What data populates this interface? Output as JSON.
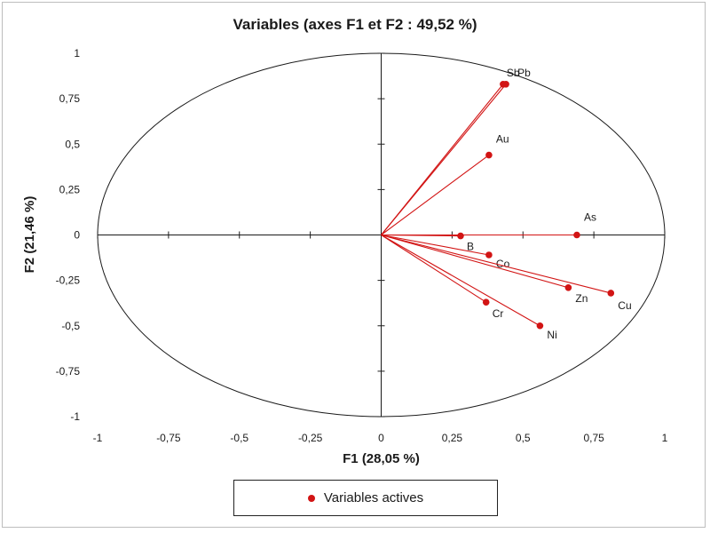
{
  "chart_data": {
    "type": "scatter",
    "title": "Variables (axes F1 et F2 : 49,52 %)",
    "xlabel": "F1 (28,05 %)",
    "ylabel": "F2 (21,46 %)",
    "xlim": [
      -1,
      1
    ],
    "ylim": [
      -1,
      1
    ],
    "xticks": [
      "-1",
      "-0,75",
      "-0,5",
      "-0,25",
      "0",
      "0,25",
      "0,5",
      "0,75",
      "1"
    ],
    "yticks": [
      "1",
      "0,75",
      "0,5",
      "0,25",
      "0",
      "-0,25",
      "-0,5",
      "-0,75",
      "-1"
    ],
    "unit_circle": true,
    "grid": false,
    "legend_position": "bottom",
    "series": [
      {
        "name": "Variables actives",
        "color": "#d21414",
        "points": [
          {
            "label": "Sb",
            "x": 0.43,
            "y": 0.83
          },
          {
            "label": "Pb",
            "x": 0.44,
            "y": 0.83
          },
          {
            "label": "Au",
            "x": 0.38,
            "y": 0.44
          },
          {
            "label": "As",
            "x": 0.69,
            "y": 0.0
          },
          {
            "label": "B",
            "x": 0.28,
            "y": -0.005
          },
          {
            "label": "Co",
            "x": 0.38,
            "y": -0.11
          },
          {
            "label": "Zn",
            "x": 0.66,
            "y": -0.29
          },
          {
            "label": "Cu",
            "x": 0.81,
            "y": -0.32
          },
          {
            "label": "Cr",
            "x": 0.37,
            "y": -0.37
          },
          {
            "label": "Ni",
            "x": 0.56,
            "y": -0.5
          }
        ]
      }
    ]
  }
}
